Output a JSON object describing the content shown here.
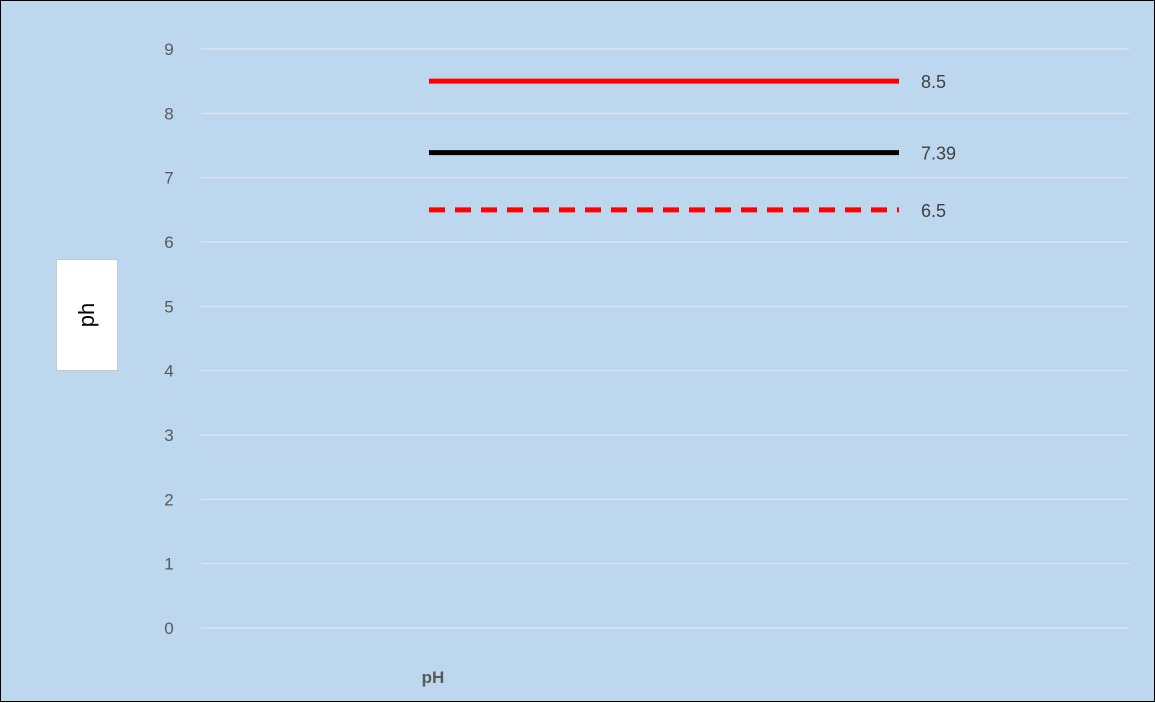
{
  "chart_data": {
    "type": "line",
    "categories": [
      "pH"
    ],
    "ylabel": "ph",
    "ylim": [
      0,
      9
    ],
    "yticks": [
      0,
      1,
      2,
      3,
      4,
      5,
      6,
      7,
      8,
      9
    ],
    "grid": true,
    "series": [
      {
        "value": 8.5,
        "label": "8.5",
        "color": "#ff0000",
        "style": "solid"
      },
      {
        "value": 7.39,
        "label": "7.39",
        "color": "#000000",
        "style": "solid"
      },
      {
        "value": 6.5,
        "label": "6.5",
        "color": "#ff0000",
        "style": "dashed"
      }
    ],
    "background": "#bdd7ee",
    "gridline_color": "#d9e6f2"
  }
}
